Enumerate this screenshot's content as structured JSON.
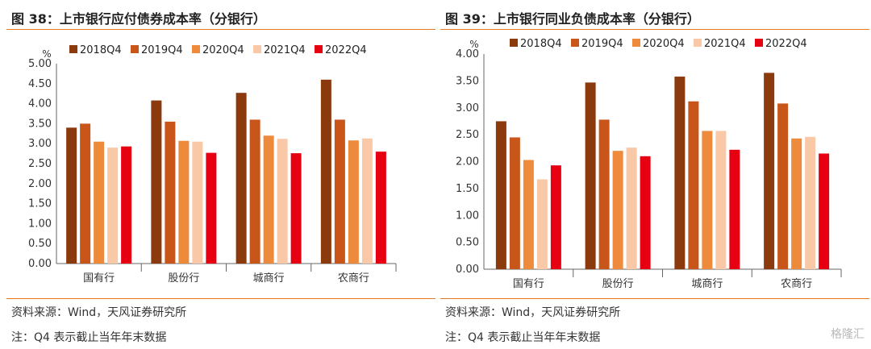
{
  "legend_labels": [
    "2018Q4",
    "2019Q4",
    "2020Q4",
    "2021Q4",
    "2022Q4"
  ],
  "series_colors": [
    "#8B3A0E",
    "#C8561A",
    "#EE8A3C",
    "#F9C8A6",
    "#E60012"
  ],
  "accent_color": "#E87722",
  "watermark": "格隆汇",
  "chart_data": [
    {
      "type": "bar",
      "title": "图 38：上市银行应付债券成本率（分银行）",
      "ylabel": "%",
      "ylim": [
        0,
        5
      ],
      "yticks": [
        "0.00",
        "0.50",
        "1.00",
        "1.50",
        "2.00",
        "2.50",
        "3.00",
        "3.50",
        "4.00",
        "4.50",
        "5.00"
      ],
      "categories": [
        "国有行",
        "股份行",
        "城商行",
        "农商行"
      ],
      "series": [
        {
          "name": "2018Q4",
          "values": [
            3.4,
            4.08,
            4.27,
            4.6
          ]
        },
        {
          "name": "2019Q4",
          "values": [
            3.5,
            3.55,
            3.6,
            3.6
          ]
        },
        {
          "name": "2020Q4",
          "values": [
            3.05,
            3.07,
            3.2,
            3.08
          ]
        },
        {
          "name": "2021Q4",
          "values": [
            2.9,
            3.05,
            3.12,
            3.13
          ]
        },
        {
          "name": "2022Q4",
          "values": [
            2.93,
            2.77,
            2.76,
            2.8
          ]
        }
      ],
      "legend": "top",
      "source": "资料来源：Wind，天风证券研究所",
      "note": "注：Q4 表示截止当年年末数据"
    },
    {
      "type": "bar",
      "title": "图 39：上市银行同业负债成本率（分银行）",
      "ylabel": "%",
      "ylim": [
        0,
        4
      ],
      "yticks": [
        "0.00",
        "0.50",
        "1.00",
        "1.50",
        "2.00",
        "2.50",
        "3.00",
        "3.50",
        "4.00"
      ],
      "categories": [
        "国有行",
        "股份行",
        "城商行",
        "农商行"
      ],
      "series": [
        {
          "name": "2018Q4",
          "values": [
            2.75,
            3.47,
            3.58,
            3.65
          ]
        },
        {
          "name": "2019Q4",
          "values": [
            2.45,
            2.78,
            3.12,
            3.08
          ]
        },
        {
          "name": "2020Q4",
          "values": [
            2.03,
            2.2,
            2.57,
            2.43
          ]
        },
        {
          "name": "2021Q4",
          "values": [
            1.67,
            2.26,
            2.57,
            2.46
          ]
        },
        {
          "name": "2022Q4",
          "values": [
            1.93,
            2.1,
            2.22,
            2.15
          ]
        }
      ],
      "legend": "top",
      "source": "资料来源：Wind，天风证券研究所",
      "note": "注：Q4 表示截止当年年末数据"
    }
  ]
}
